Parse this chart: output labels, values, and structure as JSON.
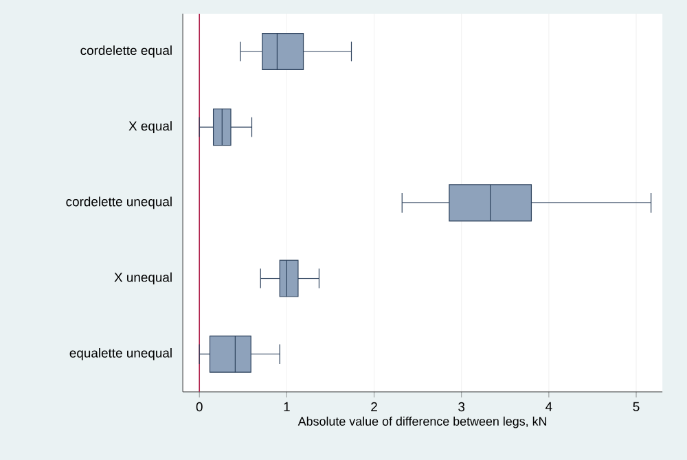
{
  "chart_data": {
    "type": "box",
    "orientation": "horizontal",
    "xlabel": "Absolute value of difference between legs, kN",
    "categories": [
      "cordelette equal",
      "X equal",
      "cordelette unequal",
      "X unequal",
      "equalette unequal"
    ],
    "boxes": [
      {
        "low": 0.47,
        "q1": 0.72,
        "median": 0.89,
        "q3": 1.19,
        "high": 1.74
      },
      {
        "low": 0.0,
        "q1": 0.16,
        "median": 0.26,
        "q3": 0.36,
        "high": 0.6
      },
      {
        "low": 2.32,
        "q1": 2.86,
        "median": 3.33,
        "q3": 3.8,
        "high": 5.17
      },
      {
        "low": 0.7,
        "q1": 0.92,
        "median": 1.0,
        "q3": 1.13,
        "high": 1.37
      },
      {
        "low": 0.0,
        "q1": 0.12,
        "median": 0.41,
        "q3": 0.59,
        "high": 0.92
      }
    ],
    "color": "#8ea2bb",
    "xlim": [
      -0.19,
      5.3
    ],
    "xticks": [
      0,
      1,
      2,
      3,
      4,
      5
    ],
    "grid": "x",
    "ref_lines": [
      {
        "axis": "x",
        "value": 0,
        "color": "#b0204a"
      }
    ]
  }
}
